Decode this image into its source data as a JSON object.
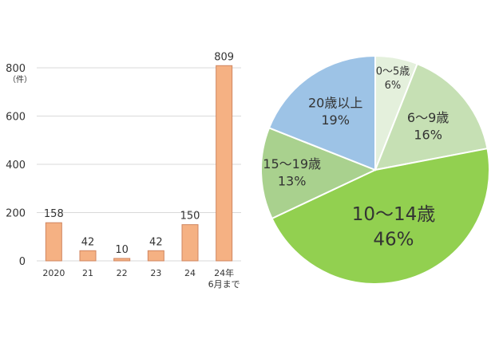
{
  "chart_data": [
    {
      "type": "bar",
      "ylabel": "（件）",
      "ylim": [
        0,
        800
      ],
      "yticks": [
        "0",
        "200",
        "400",
        "600",
        "800"
      ],
      "categories": [
        "2020",
        "21",
        "22",
        "23",
        "24",
        "24年\n6月まで"
      ],
      "values": [
        158,
        42,
        10,
        42,
        150,
        809
      ],
      "data_labels": [
        "158",
        "42",
        "10",
        "42",
        "150",
        "809"
      ],
      "grid": true,
      "colors": {
        "bar": "#F5B183",
        "bar_edge": "#D08660",
        "grid": "#D9D9D9",
        "text": "#333333"
      }
    },
    {
      "type": "pie",
      "slices": [
        {
          "label": "0～5歳",
          "pct_label": "6%",
          "value": 6,
          "color": "#E4F0DC"
        },
        {
          "label": "6～9歳",
          "pct_label": "16%",
          "value": 16,
          "color": "#C6E0B4"
        },
        {
          "label": "10～14歳",
          "pct_label": "46%",
          "value": 46,
          "color": "#92D050"
        },
        {
          "label": "15～19歳",
          "pct_label": "13%",
          "value": 13,
          "color": "#A9D18E"
        },
        {
          "label": "20歳以上",
          "pct_label": "19%",
          "value": 19,
          "color": "#9DC3E6"
        }
      ],
      "start": "top",
      "direction": "clockwise",
      "colors": {
        "edge": "#FFFFFF",
        "text": "#333333"
      }
    }
  ]
}
